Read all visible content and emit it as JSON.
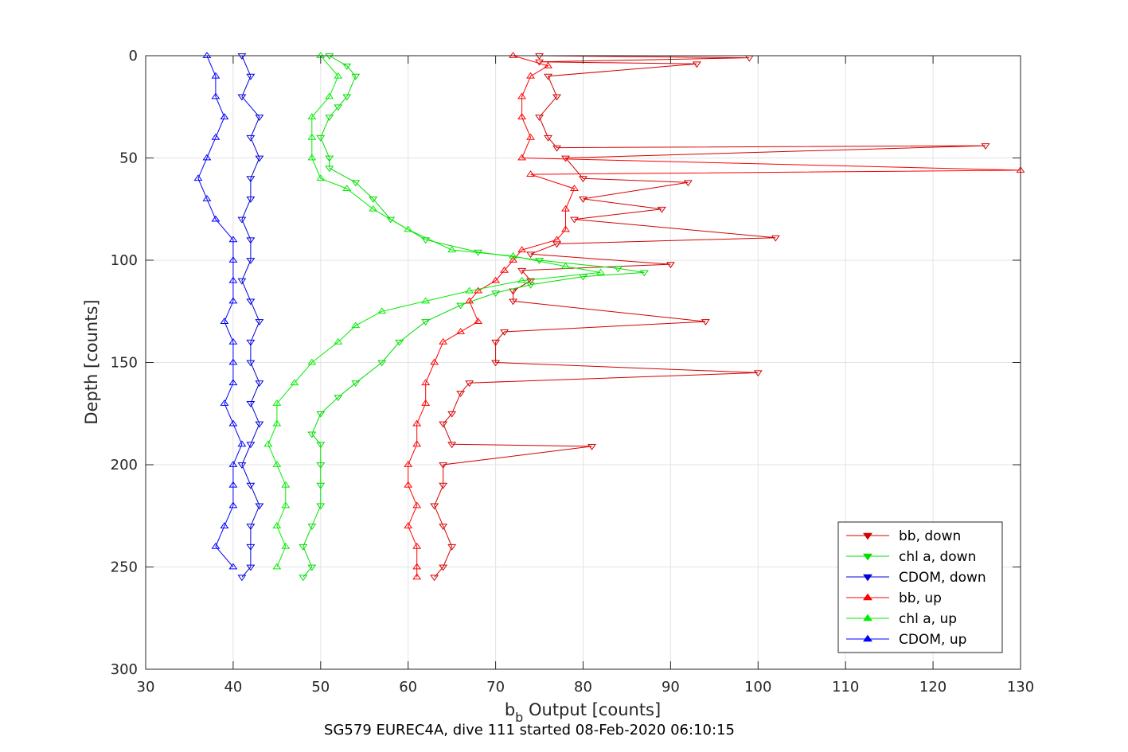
{
  "chart_data": {
    "type": "line",
    "xlabel_main": "b",
    "xlabel_sub": "b",
    "xlabel_rest": " Output [counts]",
    "ylabel": "Depth [counts]",
    "caption": "SG579 EUREC4A, dive 111 started 08-Feb-2020 06:10:15",
    "xlim": [
      30,
      130
    ],
    "ylim": [
      0,
      300
    ],
    "y_reversed": true,
    "grid": true,
    "x_ticks": [
      "30",
      "40",
      "50",
      "60",
      "70",
      "80",
      "90",
      "100",
      "110",
      "120",
      "130"
    ],
    "y_ticks": [
      "0",
      "50",
      "100",
      "150",
      "200",
      "250",
      "300"
    ],
    "legend_position": "bottom-right",
    "series": [
      {
        "name": "bb, down",
        "color": "#d40000",
        "marker": "triangle-down",
        "points": [
          [
            75,
            0
          ],
          [
            99,
            1
          ],
          [
            75,
            3
          ],
          [
            93,
            4
          ],
          [
            76,
            10
          ],
          [
            77,
            20
          ],
          [
            75,
            30
          ],
          [
            76,
            40
          ],
          [
            77,
            45
          ],
          [
            126,
            44
          ],
          [
            78,
            50
          ],
          [
            80,
            60
          ],
          [
            92,
            62
          ],
          [
            80,
            70
          ],
          [
            89,
            75
          ],
          [
            79,
            80
          ],
          [
            102,
            89
          ],
          [
            77,
            92
          ],
          [
            74,
            97
          ],
          [
            90,
            102
          ],
          [
            73,
            105
          ],
          [
            74,
            110
          ],
          [
            72,
            115
          ],
          [
            72,
            120
          ],
          [
            94,
            130
          ],
          [
            71,
            135
          ],
          [
            70,
            140
          ],
          [
            70,
            150
          ],
          [
            100,
            155
          ],
          [
            67,
            160
          ],
          [
            66,
            165
          ],
          [
            65,
            175
          ],
          [
            64,
            180
          ],
          [
            65,
            190
          ],
          [
            81,
            191
          ],
          [
            64,
            200
          ],
          [
            64,
            210
          ],
          [
            63,
            220
          ],
          [
            64,
            230
          ],
          [
            65,
            240
          ],
          [
            64,
            250
          ],
          [
            63,
            255
          ]
        ]
      },
      {
        "name": "chl a, down",
        "color": "#00dd00",
        "marker": "triangle-down",
        "points": [
          [
            51,
            0
          ],
          [
            53,
            5
          ],
          [
            54,
            10
          ],
          [
            53,
            20
          ],
          [
            52,
            25
          ],
          [
            51,
            30
          ],
          [
            50,
            40
          ],
          [
            51,
            50
          ],
          [
            51,
            55
          ],
          [
            54,
            62
          ],
          [
            56,
            70
          ],
          [
            58,
            80
          ],
          [
            62,
            90
          ],
          [
            68,
            96
          ],
          [
            75,
            100
          ],
          [
            84,
            104
          ],
          [
            87,
            106
          ],
          [
            80,
            108
          ],
          [
            74,
            112
          ],
          [
            70,
            116
          ],
          [
            66,
            122
          ],
          [
            62,
            130
          ],
          [
            59,
            140
          ],
          [
            57,
            150
          ],
          [
            54,
            160
          ],
          [
            52,
            167
          ],
          [
            50,
            175
          ],
          [
            49,
            185
          ],
          [
            50,
            190
          ],
          [
            50,
            200
          ],
          [
            50,
            210
          ],
          [
            50,
            220
          ],
          [
            49,
            230
          ],
          [
            48,
            240
          ],
          [
            49,
            250
          ],
          [
            48,
            255
          ]
        ]
      },
      {
        "name": "CDOM, down",
        "color": "#0000dd",
        "marker": "triangle-down",
        "points": [
          [
            41,
            0
          ],
          [
            42,
            10
          ],
          [
            41,
            20
          ],
          [
            43,
            30
          ],
          [
            42,
            40
          ],
          [
            43,
            50
          ],
          [
            42,
            60
          ],
          [
            42,
            70
          ],
          [
            41,
            80
          ],
          [
            42,
            90
          ],
          [
            42,
            100
          ],
          [
            41,
            110
          ],
          [
            42,
            120
          ],
          [
            43,
            130
          ],
          [
            42,
            140
          ],
          [
            42,
            150
          ],
          [
            43,
            160
          ],
          [
            42,
            170
          ],
          [
            43,
            180
          ],
          [
            42,
            190
          ],
          [
            41,
            200
          ],
          [
            42,
            210
          ],
          [
            43,
            220
          ],
          [
            42,
            230
          ],
          [
            42,
            240
          ],
          [
            42,
            250
          ],
          [
            41,
            255
          ]
        ]
      },
      {
        "name": "bb, up",
        "color": "#ff0000",
        "marker": "triangle-up",
        "points": [
          [
            72,
            0
          ],
          [
            76,
            5
          ],
          [
            74,
            10
          ],
          [
            73,
            20
          ],
          [
            73,
            30
          ],
          [
            74,
            40
          ],
          [
            73,
            50
          ],
          [
            130,
            56
          ],
          [
            74,
            58
          ],
          [
            79,
            65
          ],
          [
            78,
            75
          ],
          [
            78,
            85
          ],
          [
            77,
            90
          ],
          [
            73,
            95
          ],
          [
            72,
            100
          ],
          [
            71,
            105
          ],
          [
            70,
            110
          ],
          [
            68,
            115
          ],
          [
            67,
            120
          ],
          [
            68,
            130
          ],
          [
            66,
            135
          ],
          [
            64,
            140
          ],
          [
            63,
            150
          ],
          [
            62,
            160
          ],
          [
            62,
            170
          ],
          [
            61,
            180
          ],
          [
            61,
            190
          ],
          [
            60,
            200
          ],
          [
            60,
            210
          ],
          [
            61,
            220
          ],
          [
            60,
            230
          ],
          [
            61,
            240
          ],
          [
            61,
            250
          ],
          [
            61,
            255
          ]
        ]
      },
      {
        "name": "chl a, up",
        "color": "#00ee00",
        "marker": "triangle-up",
        "points": [
          [
            50,
            0
          ],
          [
            52,
            10
          ],
          [
            51,
            20
          ],
          [
            49,
            30
          ],
          [
            49,
            40
          ],
          [
            49,
            50
          ],
          [
            50,
            60
          ],
          [
            53,
            65
          ],
          [
            56,
            75
          ],
          [
            60,
            85
          ],
          [
            65,
            95
          ],
          [
            72,
            98
          ],
          [
            78,
            103
          ],
          [
            82,
            106
          ],
          [
            73,
            110
          ],
          [
            67,
            115
          ],
          [
            62,
            120
          ],
          [
            57,
            125
          ],
          [
            54,
            132
          ],
          [
            52,
            140
          ],
          [
            49,
            150
          ],
          [
            47,
            160
          ],
          [
            45,
            170
          ],
          [
            45,
            180
          ],
          [
            44,
            190
          ],
          [
            45,
            200
          ],
          [
            46,
            210
          ],
          [
            46,
            220
          ],
          [
            45,
            230
          ],
          [
            46,
            240
          ],
          [
            45,
            250
          ]
        ]
      },
      {
        "name": "CDOM, up",
        "color": "#0000ff",
        "marker": "triangle-up",
        "points": [
          [
            37,
            0
          ],
          [
            38,
            10
          ],
          [
            38,
            20
          ],
          [
            39,
            30
          ],
          [
            38,
            40
          ],
          [
            37,
            50
          ],
          [
            36,
            60
          ],
          [
            37,
            70
          ],
          [
            38,
            80
          ],
          [
            40,
            90
          ],
          [
            40,
            100
          ],
          [
            40,
            110
          ],
          [
            40,
            120
          ],
          [
            39,
            130
          ],
          [
            40,
            140
          ],
          [
            40,
            150
          ],
          [
            40,
            160
          ],
          [
            39,
            170
          ],
          [
            40,
            180
          ],
          [
            41,
            190
          ],
          [
            40,
            200
          ],
          [
            40,
            210
          ],
          [
            40,
            220
          ],
          [
            39,
            230
          ],
          [
            38,
            240
          ],
          [
            40,
            250
          ]
        ]
      }
    ]
  }
}
